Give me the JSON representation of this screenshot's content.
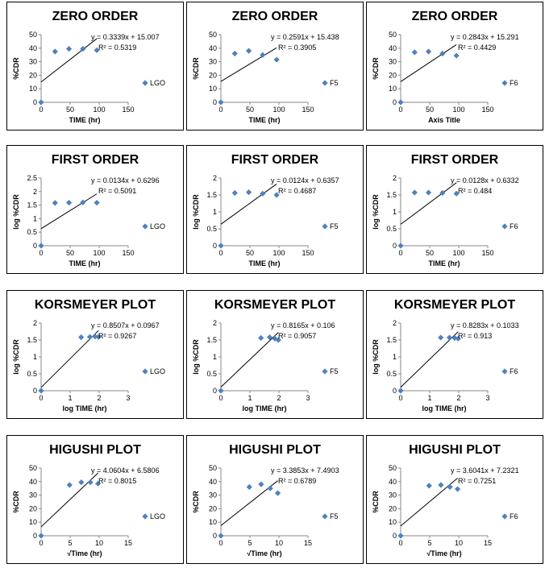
{
  "colors": {
    "marker": "#4f81bd",
    "line": "#000000",
    "axis": "#888888"
  },
  "chart_data": [
    {
      "type": "scatter",
      "title": "ZERO ORDER",
      "xlabel": "TIME (hr)",
      "ylabel": "%CDR",
      "xlim": [
        0,
        150
      ],
      "xticks": [
        0,
        50,
        100,
        150
      ],
      "ylim": [
        0,
        50
      ],
      "yticks": [
        0,
        10,
        20,
        30,
        40,
        50
      ],
      "series": [
        {
          "name": "LGO",
          "x": [
            0,
            24,
            48,
            72,
            96
          ],
          "y": [
            0,
            37.5,
            39.5,
            39.5,
            38.5
          ]
        }
      ],
      "trend": {
        "slope": 0.3339,
        "intercept": 15.007,
        "equation": "y = 0.3339x + 15.007",
        "r2": "R² = 0.5319"
      }
    },
    {
      "type": "scatter",
      "title": "ZERO ORDER",
      "xlabel": "TIME (hr)",
      "ylabel": "%CDR",
      "xlim": [
        0,
        150
      ],
      "xticks": [
        0,
        50,
        100,
        150
      ],
      "ylim": [
        0,
        50
      ],
      "yticks": [
        0,
        10,
        20,
        30,
        40,
        50
      ],
      "series": [
        {
          "name": "F5",
          "x": [
            0,
            24,
            48,
            72,
            96
          ],
          "y": [
            0,
            36,
            38,
            35,
            31.5
          ]
        }
      ],
      "trend": {
        "slope": 0.2591,
        "intercept": 15.438,
        "equation": "y = 0.2591x + 15.438",
        "r2": "R² = 0.3905"
      }
    },
    {
      "type": "scatter",
      "title": "ZERO ORDER",
      "xlabel": "Axis Title",
      "ylabel": "%CDR",
      "xlim": [
        0,
        150
      ],
      "xticks": [
        0,
        50,
        100,
        150
      ],
      "ylim": [
        0,
        50
      ],
      "yticks": [
        0,
        10,
        20,
        30,
        40,
        50
      ],
      "series": [
        {
          "name": "F6",
          "x": [
            0,
            24,
            48,
            72,
            96
          ],
          "y": [
            0,
            37,
            37.5,
            36,
            34.5
          ]
        }
      ],
      "trend": {
        "slope": 0.2843,
        "intercept": 15.291,
        "equation": "y = 0.2843x + 15.291",
        "r2": "R² = 0.4429"
      }
    },
    {
      "type": "scatter",
      "title": "FIRST ORDER",
      "xlabel": "TIME (hr)",
      "ylabel": "log %CDR",
      "xlim": [
        0,
        150
      ],
      "xticks": [
        0,
        50,
        100,
        150
      ],
      "ylim": [
        0,
        2.5
      ],
      "yticks": [
        0,
        0.5,
        1,
        1.5,
        2,
        2.5
      ],
      "series": [
        {
          "name": "LGO",
          "x": [
            0,
            24,
            48,
            72,
            96
          ],
          "y": [
            0,
            1.58,
            1.59,
            1.6,
            1.59
          ]
        }
      ],
      "trend": {
        "slope": 0.0134,
        "intercept": 0.6296,
        "equation": "y = 0.0134x + 0.6296",
        "r2": "R² = 0.5091"
      }
    },
    {
      "type": "scatter",
      "title": "FIRST ORDER",
      "xlabel": "TIME (hr)",
      "ylabel": "log %CDR",
      "xlim": [
        0,
        150
      ],
      "xticks": [
        0,
        50,
        100,
        150
      ],
      "ylim": [
        0,
        2
      ],
      "yticks": [
        0,
        0.5,
        1,
        1.5,
        2
      ],
      "series": [
        {
          "name": "F5",
          "x": [
            0,
            24,
            48,
            72,
            96
          ],
          "y": [
            0,
            1.56,
            1.58,
            1.54,
            1.5
          ]
        }
      ],
      "trend": {
        "slope": 0.0124,
        "intercept": 0.6357,
        "equation": "y = 0.0124x + 0.6357",
        "r2": "R² = 0.4687"
      }
    },
    {
      "type": "scatter",
      "title": "FIRST ORDER",
      "xlabel": "TIME (hr)",
      "ylabel": "log %CDR",
      "xlim": [
        0,
        150
      ],
      "xticks": [
        0,
        50,
        100,
        150
      ],
      "ylim": [
        0,
        2
      ],
      "yticks": [
        0,
        0.5,
        1,
        1.5,
        2
      ],
      "series": [
        {
          "name": "F6",
          "x": [
            0,
            24,
            48,
            72,
            96
          ],
          "y": [
            0,
            1.57,
            1.57,
            1.56,
            1.54
          ]
        }
      ],
      "trend": {
        "slope": 0.0128,
        "intercept": 0.6332,
        "equation": "y = 0.0128x + 0.6332",
        "r2": "R² = 0.484"
      }
    },
    {
      "type": "scatter",
      "title": "KORSMEYER PLOT",
      "xlabel": "log TIME (hr)",
      "ylabel": "log %CDR",
      "xlim": [
        0,
        3
      ],
      "xticks": [
        0,
        1,
        2,
        3
      ],
      "ylim": [
        0,
        2
      ],
      "yticks": [
        0,
        0.5,
        1,
        1.5,
        2
      ],
      "series": [
        {
          "name": "LGO",
          "x": [
            0,
            1.38,
            1.68,
            1.86,
            1.98
          ],
          "y": [
            0,
            1.58,
            1.59,
            1.6,
            1.59
          ]
        }
      ],
      "trend": {
        "slope": 0.8507,
        "intercept": 0.0967,
        "equation": "y = 0.8507x + 0.0967",
        "r2": "R² = 0.9267"
      }
    },
    {
      "type": "scatter",
      "title": "KORSMEYER PLOT",
      "xlabel": "log TIME (hr)",
      "ylabel": "log %CDR",
      "xlim": [
        0,
        3
      ],
      "xticks": [
        0,
        1,
        2,
        3
      ],
      "ylim": [
        0,
        2
      ],
      "yticks": [
        0,
        0.5,
        1,
        1.5,
        2
      ],
      "series": [
        {
          "name": "F5",
          "x": [
            0,
            1.38,
            1.68,
            1.86,
            1.98
          ],
          "y": [
            0,
            1.56,
            1.58,
            1.54,
            1.5
          ]
        }
      ],
      "trend": {
        "slope": 0.8165,
        "intercept": 0.106,
        "equation": "y = 0.8165x + 0.106",
        "r2": "R² = 0.9057"
      }
    },
    {
      "type": "scatter",
      "title": "KORSMEYER PLOT",
      "xlabel": "log TIME (hr)",
      "ylabel": "log %CDR",
      "xlim": [
        0,
        3
      ],
      "xticks": [
        0,
        1,
        2,
        3
      ],
      "ylim": [
        0,
        2
      ],
      "yticks": [
        0,
        0.5,
        1,
        1.5,
        2
      ],
      "series": [
        {
          "name": "F6",
          "x": [
            0,
            1.38,
            1.68,
            1.86,
            1.98
          ],
          "y": [
            0,
            1.57,
            1.57,
            1.56,
            1.54
          ]
        }
      ],
      "trend": {
        "slope": 0.8283,
        "intercept": 0.1033,
        "equation": "y = 0.8283x + 0.1033",
        "r2": "R² = 0.913"
      }
    },
    {
      "type": "scatter",
      "title": "HIGUSHI PLOT",
      "xlabel": "√Time (hr)",
      "ylabel": "%CDR",
      "xlim": [
        0,
        15
      ],
      "xticks": [
        0,
        5,
        10,
        15
      ],
      "ylim": [
        0,
        50
      ],
      "yticks": [
        0,
        10,
        20,
        30,
        40,
        50
      ],
      "series": [
        {
          "name": "LGO",
          "x": [
            0,
            4.9,
            6.93,
            8.49,
            9.8
          ],
          "y": [
            0,
            37.5,
            39.5,
            39.5,
            38.5
          ]
        }
      ],
      "trend": {
        "slope": 4.0604,
        "intercept": 6.5806,
        "equation": "y = 4.0604x + 6.5806",
        "r2": "R² = 0.8015"
      }
    },
    {
      "type": "scatter",
      "title": "HIGUSHI PLOT",
      "xlabel": "√Time (hr)",
      "ylabel": "%CDR",
      "xlim": [
        0,
        15
      ],
      "xticks": [
        0,
        5,
        10,
        15
      ],
      "ylim": [
        0,
        50
      ],
      "yticks": [
        0,
        10,
        20,
        30,
        40,
        50
      ],
      "series": [
        {
          "name": "F5",
          "x": [
            0,
            4.9,
            6.93,
            8.49,
            9.8
          ],
          "y": [
            0,
            36,
            38,
            35,
            31.5
          ]
        }
      ],
      "trend": {
        "slope": 3.3853,
        "intercept": 7.4903,
        "equation": "y = 3.3853x + 7.4903",
        "r2": "R² = 0.6789"
      }
    },
    {
      "type": "scatter",
      "title": "HIGUSHI PLOT",
      "xlabel": "√Time (hr)",
      "ylabel": "%CDR",
      "xlim": [
        0,
        15
      ],
      "xticks": [
        0,
        5,
        10,
        15
      ],
      "ylim": [
        0,
        50
      ],
      "yticks": [
        0,
        10,
        20,
        30,
        40,
        50
      ],
      "series": [
        {
          "name": "F6",
          "x": [
            0,
            4.9,
            6.93,
            8.49,
            9.8
          ],
          "y": [
            0,
            37,
            37.5,
            36,
            34.5
          ]
        }
      ],
      "trend": {
        "slope": 3.6041,
        "intercept": 7.2321,
        "equation": "y = 3.6041x + 7.2321",
        "r2": "R² = 0.7251"
      }
    }
  ]
}
